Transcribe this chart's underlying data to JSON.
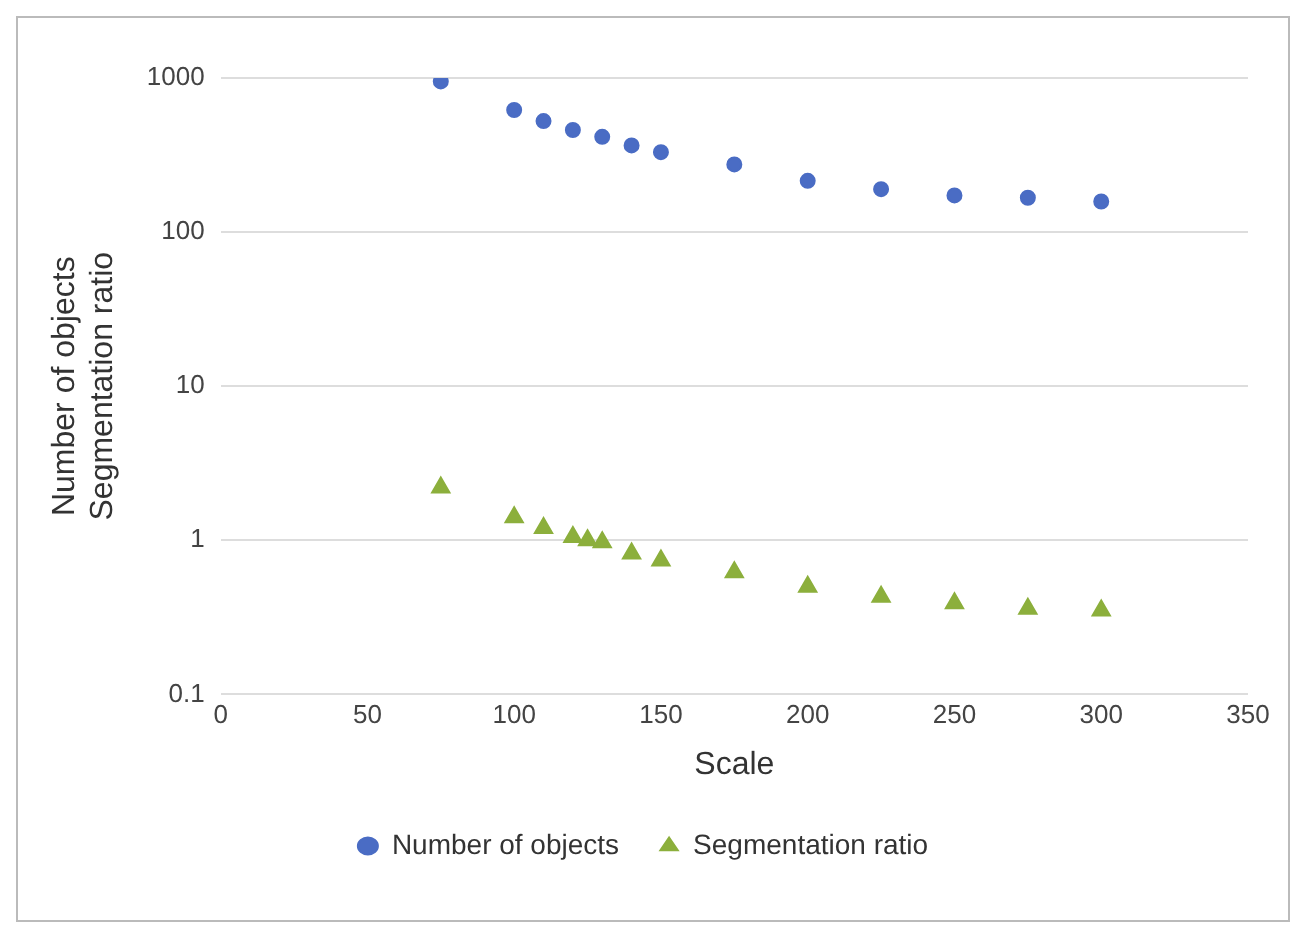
{
  "chart_data": {
    "type": "scatter",
    "xlabel": "Scale",
    "ylabel": "Number of objects\nSegmentation ratio",
    "xlim": [
      0,
      350
    ],
    "xticks": [
      0,
      50,
      100,
      150,
      200,
      250,
      300,
      350
    ],
    "ylim": [
      0.1,
      1000
    ],
    "yticks": [
      0.1,
      1,
      10,
      100,
      1000
    ],
    "log": "y",
    "grid": "y",
    "legend": "bottom",
    "x": [
      75,
      100,
      110,
      120,
      125,
      130,
      140,
      150,
      175,
      200,
      225,
      250,
      275,
      300
    ],
    "series": [
      {
        "name": "Number of objects",
        "color": "#4a6cc4",
        "marker": "circle",
        "values": [
          950,
          620,
          525,
          460,
          null,
          415,
          365,
          330,
          275,
          215,
          190,
          173,
          167,
          158
        ],
        "x": [
          75,
          100,
          110,
          120,
          125,
          130,
          140,
          150,
          175,
          200,
          225,
          250,
          275,
          300
        ]
      },
      {
        "name": "Segmentation ratio",
        "color": "#8caf3c",
        "marker": "triangle",
        "values": [
          2.2,
          1.41,
          1.2,
          1.05,
          1.0,
          0.97,
          0.82,
          0.74,
          0.62,
          0.5,
          0.43,
          0.39,
          0.36,
          0.35
        ]
      }
    ]
  }
}
